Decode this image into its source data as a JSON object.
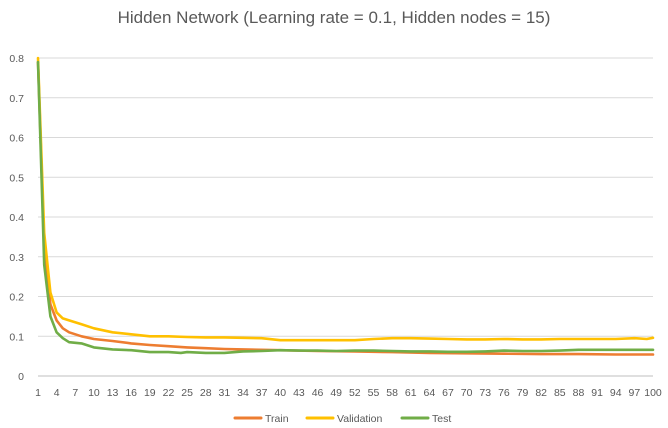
{
  "chart_data": {
    "type": "line",
    "title": "Hidden Network (Learning rate = 0.1, Hidden nodes = 15)",
    "xlabel": "",
    "ylabel": "",
    "ylim": [
      0,
      0.8
    ],
    "yticks": [
      "0",
      "0.1",
      "0.2",
      "0.3",
      "0.4",
      "0.5",
      "0.6",
      "0.7",
      "0.8"
    ],
    "xticks": [
      1,
      4,
      7,
      10,
      13,
      16,
      19,
      22,
      25,
      28,
      31,
      34,
      37,
      40,
      43,
      46,
      49,
      52,
      55,
      58,
      61,
      64,
      67,
      70,
      73,
      76,
      79,
      82,
      85,
      88,
      91,
      94,
      97,
      100
    ],
    "grid": true,
    "legend": "bottom",
    "colors": {
      "Train": "#ED7D31",
      "Validation": "#FFC000",
      "Test": "#70AD47"
    },
    "series": [
      {
        "name": "Train",
        "points": [
          [
            1,
            0.79
          ],
          [
            2,
            0.33
          ],
          [
            3,
            0.18
          ],
          [
            4,
            0.14
          ],
          [
            5,
            0.12
          ],
          [
            6,
            0.11
          ],
          [
            8,
            0.1
          ],
          [
            10,
            0.093
          ],
          [
            13,
            0.088
          ],
          [
            16,
            0.082
          ],
          [
            19,
            0.078
          ],
          [
            22,
            0.075
          ],
          [
            25,
            0.072
          ],
          [
            28,
            0.07
          ],
          [
            31,
            0.068
          ],
          [
            34,
            0.067
          ],
          [
            40,
            0.065
          ],
          [
            46,
            0.063
          ],
          [
            52,
            0.062
          ],
          [
            58,
            0.06
          ],
          [
            64,
            0.058
          ],
          [
            70,
            0.057
          ],
          [
            76,
            0.056
          ],
          [
            82,
            0.055
          ],
          [
            88,
            0.055
          ],
          [
            94,
            0.054
          ],
          [
            100,
            0.054
          ]
        ]
      },
      {
        "name": "Validation",
        "points": [
          [
            1,
            0.8
          ],
          [
            2,
            0.36
          ],
          [
            3,
            0.21
          ],
          [
            4,
            0.16
          ],
          [
            5,
            0.145
          ],
          [
            6,
            0.14
          ],
          [
            8,
            0.13
          ],
          [
            10,
            0.12
          ],
          [
            13,
            0.11
          ],
          [
            16,
            0.105
          ],
          [
            19,
            0.1
          ],
          [
            22,
            0.1
          ],
          [
            25,
            0.098
          ],
          [
            28,
            0.097
          ],
          [
            31,
            0.097
          ],
          [
            34,
            0.096
          ],
          [
            37,
            0.095
          ],
          [
            40,
            0.09
          ],
          [
            43,
            0.09
          ],
          [
            46,
            0.09
          ],
          [
            49,
            0.09
          ],
          [
            52,
            0.09
          ],
          [
            55,
            0.093
          ],
          [
            58,
            0.095
          ],
          [
            61,
            0.095
          ],
          [
            64,
            0.094
          ],
          [
            67,
            0.093
          ],
          [
            70,
            0.092
          ],
          [
            73,
            0.092
          ],
          [
            76,
            0.093
          ],
          [
            79,
            0.092
          ],
          [
            82,
            0.092
          ],
          [
            85,
            0.093
          ],
          [
            88,
            0.093
          ],
          [
            91,
            0.093
          ],
          [
            94,
            0.093
          ],
          [
            97,
            0.095
          ],
          [
            99,
            0.093
          ],
          [
            100,
            0.096
          ]
        ]
      },
      {
        "name": "Test",
        "points": [
          [
            1,
            0.79
          ],
          [
            2,
            0.28
          ],
          [
            3,
            0.15
          ],
          [
            4,
            0.11
          ],
          [
            5,
            0.095
          ],
          [
            6,
            0.085
          ],
          [
            8,
            0.082
          ],
          [
            10,
            0.072
          ],
          [
            13,
            0.067
          ],
          [
            16,
            0.065
          ],
          [
            18,
            0.062
          ],
          [
            19,
            0.06
          ],
          [
            22,
            0.06
          ],
          [
            24,
            0.058
          ],
          [
            25,
            0.06
          ],
          [
            28,
            0.058
          ],
          [
            31,
            0.058
          ],
          [
            34,
            0.062
          ],
          [
            37,
            0.063
          ],
          [
            40,
            0.065
          ],
          [
            43,
            0.064
          ],
          [
            46,
            0.064
          ],
          [
            49,
            0.063
          ],
          [
            52,
            0.064
          ],
          [
            55,
            0.064
          ],
          [
            58,
            0.063
          ],
          [
            61,
            0.062
          ],
          [
            64,
            0.062
          ],
          [
            67,
            0.061
          ],
          [
            70,
            0.061
          ],
          [
            73,
            0.062
          ],
          [
            76,
            0.064
          ],
          [
            79,
            0.063
          ],
          [
            82,
            0.063
          ],
          [
            85,
            0.064
          ],
          [
            88,
            0.066
          ],
          [
            91,
            0.066
          ],
          [
            94,
            0.066
          ],
          [
            97,
            0.066
          ],
          [
            100,
            0.066
          ]
        ]
      }
    ]
  }
}
